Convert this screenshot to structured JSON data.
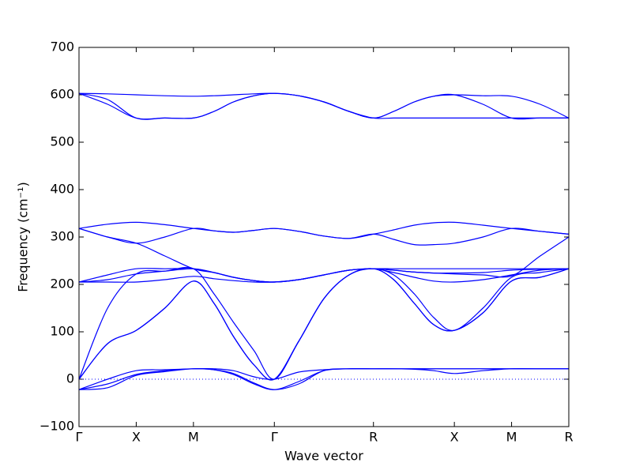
{
  "chart_data": {
    "type": "line",
    "x_label": "Wave vector",
    "y_label": "Frequency (cm⁻¹)",
    "xlim": [
      0,
      4.28
    ],
    "ylim": [
      -100,
      700
    ],
    "xticks": [
      {
        "value": 0,
        "label": "Γ"
      },
      {
        "value": 0.5,
        "label": "X"
      },
      {
        "value": 1.0,
        "label": "M"
      },
      {
        "value": 1.707,
        "label": "Γ"
      },
      {
        "value": 2.573,
        "label": "R"
      },
      {
        "value": 3.28,
        "label": "X"
      },
      {
        "value": 3.78,
        "label": "M"
      },
      {
        "value": 4.28,
        "label": "R"
      }
    ],
    "yticks": [
      {
        "value": -100,
        "label": "−100"
      },
      0,
      100,
      200,
      300,
      400,
      500,
      600,
      700
    ],
    "x": [
      0,
      0.25,
      0.5,
      0.75,
      1.0,
      1.18,
      1.35,
      1.53,
      1.707,
      1.92,
      2.14,
      2.36,
      2.573,
      2.75,
      2.93,
      3.1,
      3.28,
      3.53,
      3.78,
      4.03,
      4.28
    ],
    "series": [
      {
        "color": "#0000ff",
        "values": [
          603,
          602,
          600,
          598,
          597,
          598,
          600,
          602,
          603,
          598,
          585,
          565,
          551,
          565,
          585,
          597,
          600,
          598,
          597,
          580,
          551
        ]
      },
      {
        "color": "#0000ff",
        "values": [
          603,
          590,
          551,
          551,
          551,
          565,
          585,
          598,
          603,
          598,
          585,
          565,
          551,
          565,
          585,
          597,
          600,
          580,
          551,
          551,
          551
        ]
      },
      {
        "color": "#0000ff",
        "values": [
          603,
          580,
          551,
          551,
          551,
          565,
          585,
          598,
          603,
          598,
          585,
          565,
          551,
          551,
          551,
          551,
          551,
          551,
          551,
          551,
          551
        ]
      },
      {
        "color": "#0000ff",
        "values": [
          318,
          327,
          331,
          326,
          318,
          313,
          310,
          314,
          318,
          312,
          302,
          297,
          306,
          315,
          325,
          330,
          331,
          325,
          318,
          312,
          306
        ]
      },
      {
        "color": "#0000ff",
        "values": [
          318,
          300,
          287,
          300,
          318,
          313,
          310,
          314,
          318,
          312,
          302,
          297,
          306,
          295,
          284,
          284,
          287,
          300,
          318,
          312,
          306
        ]
      },
      {
        "color": "#0000ff",
        "values": [
          318,
          300,
          287,
          260,
          233,
          225,
          215,
          208,
          205,
          210,
          220,
          230,
          233,
          230,
          226,
          224,
          222,
          220,
          218,
          260,
          300
        ]
      },
      {
        "color": "#0000ff",
        "values": [
          205,
          220,
          233,
          233,
          233,
          225,
          215,
          208,
          205,
          210,
          220,
          230,
          233,
          233,
          233,
          233,
          233,
          233,
          233,
          233,
          233
        ]
      },
      {
        "color": "#0000ff",
        "values": [
          205,
          210,
          222,
          228,
          233,
          225,
          215,
          208,
          205,
          210,
          220,
          230,
          233,
          230,
          226,
          224,
          224,
          225,
          230,
          232,
          233
        ]
      },
      {
        "color": "#0000ff",
        "values": [
          205,
          205,
          205,
          210,
          217,
          212,
          208,
          205,
          205,
          210,
          220,
          230,
          233,
          225,
          215,
          207,
          205,
          210,
          220,
          230,
          233
        ]
      },
      {
        "color": "#0000ff",
        "values": [
          0,
          75,
          103,
          150,
          207,
          160,
          90,
          30,
          0,
          80,
          170,
          220,
          233,
          210,
          160,
          115,
          103,
          140,
          207,
          215,
          233
        ]
      },
      {
        "color": "#0000ff",
        "values": [
          0,
          150,
          222,
          228,
          233,
          180,
          120,
          60,
          0,
          80,
          170,
          220,
          233,
          220,
          180,
          130,
          103,
          150,
          215,
          225,
          233
        ]
      },
      {
        "color": "#0000ff",
        "values": [
          0,
          75,
          103,
          150,
          207,
          160,
          90,
          30,
          0,
          80,
          170,
          220,
          233,
          210,
          160,
          115,
          103,
          140,
          207,
          215,
          233
        ]
      },
      {
        "color": "#0000ff",
        "values": [
          -22,
          -10,
          10,
          18,
          22,
          20,
          10,
          -10,
          -22,
          -5,
          18,
          22,
          22,
          22,
          21,
          18,
          12,
          18,
          22,
          22,
          22
        ]
      },
      {
        "color": "#0000ff",
        "values": [
          -22,
          0,
          18,
          20,
          22,
          22,
          18,
          5,
          0,
          15,
          20,
          22,
          22,
          22,
          22,
          22,
          22,
          22,
          22,
          22,
          22
        ]
      },
      {
        "color": "#0000ff",
        "values": [
          -22,
          -18,
          8,
          16,
          22,
          20,
          12,
          -8,
          -22,
          -10,
          18,
          22,
          22,
          22,
          22,
          22,
          22,
          22,
          22,
          22,
          22
        ]
      }
    ]
  }
}
